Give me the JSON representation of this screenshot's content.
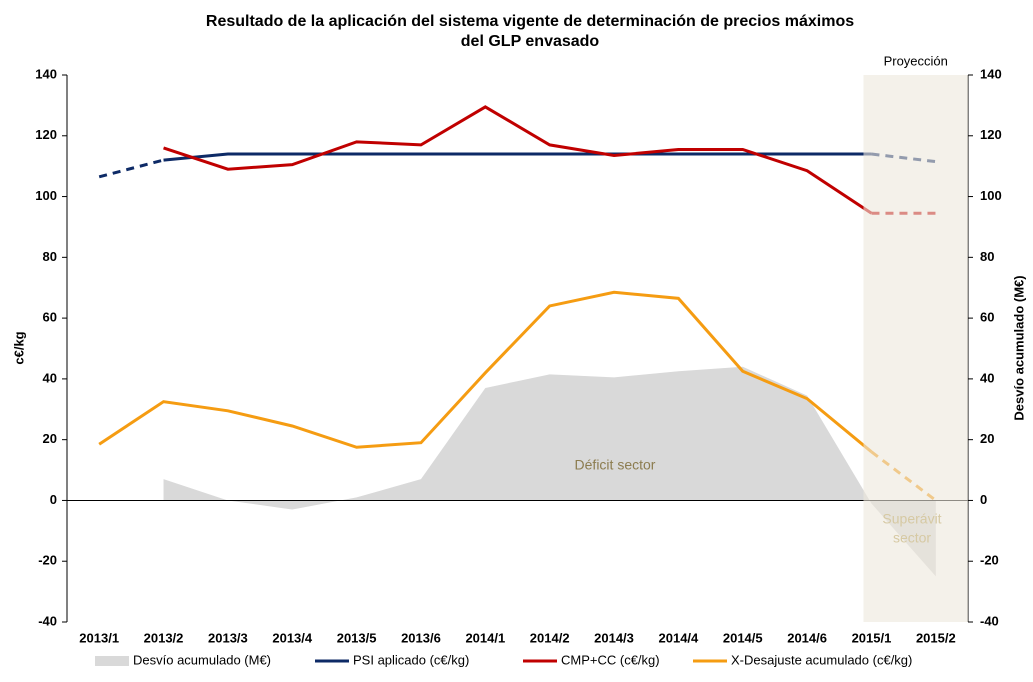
{
  "chart_data": {
    "type": "line",
    "title": [
      "Resultado de la aplicación del sistema vigente de determinación de precios máximos",
      "del GLP envasado"
    ],
    "y_label": "c€/kg",
    "y2_label": "Desvío acumulado (M€)",
    "annotations": [
      "Proyección",
      "Déficit sector",
      "Superávit",
      "sector"
    ],
    "categories": [
      "2013/1",
      "2013/2",
      "2013/3",
      "2013/4",
      "2013/5",
      "2013/6",
      "2014/1",
      "2014/2",
      "2014/3",
      "2014/4",
      "2014/5",
      "2014/6",
      "2015/1",
      "2015/2"
    ],
    "series": [
      {
        "name": "Desvío acumulado (M€)",
        "kind": "area",
        "axis": "y2",
        "color": "#d9d9d9",
        "values": [
          null,
          7,
          0,
          -3,
          1,
          7,
          37,
          41.5,
          40.5,
          42.5,
          44,
          34.5,
          -1,
          -25
        ]
      },
      {
        "name": "PSI aplicado (c€/kg)",
        "kind": "line",
        "color": "#0d2a66",
        "dashed_segments": [
          0,
          12
        ],
        "values": [
          106.5,
          112,
          114,
          114,
          114,
          114,
          114,
          114,
          114,
          114,
          114,
          114,
          114,
          111.5
        ]
      },
      {
        "name": "CMP+CC (c€/kg)",
        "kind": "line",
        "color": "#c00000",
        "dashed_segments": [
          12
        ],
        "values": [
          null,
          116,
          109,
          110.5,
          118,
          117,
          129.5,
          117,
          113.5,
          115.5,
          115.5,
          108.5,
          94.5,
          94.5
        ]
      },
      {
        "name": "X-Desajuste acumulado (c€/kg)",
        "kind": "line",
        "color": "#f59c12",
        "dashed_segments": [
          12
        ],
        "values": [
          18.5,
          32.5,
          29.5,
          24.5,
          17.5,
          19,
          42,
          64,
          68.5,
          66.5,
          42.5,
          33.5,
          16,
          0
        ]
      }
    ],
    "ylim": [
      -40,
      140
    ],
    "yticks": [
      -40,
      -20,
      0,
      20,
      40,
      60,
      80,
      100,
      120,
      140
    ],
    "y2lim": [
      -40,
      140
    ],
    "y2ticks": [
      -40,
      -20,
      0,
      20,
      40,
      60,
      80,
      100,
      120,
      140
    ],
    "legend": "bottom",
    "grid": false
  }
}
